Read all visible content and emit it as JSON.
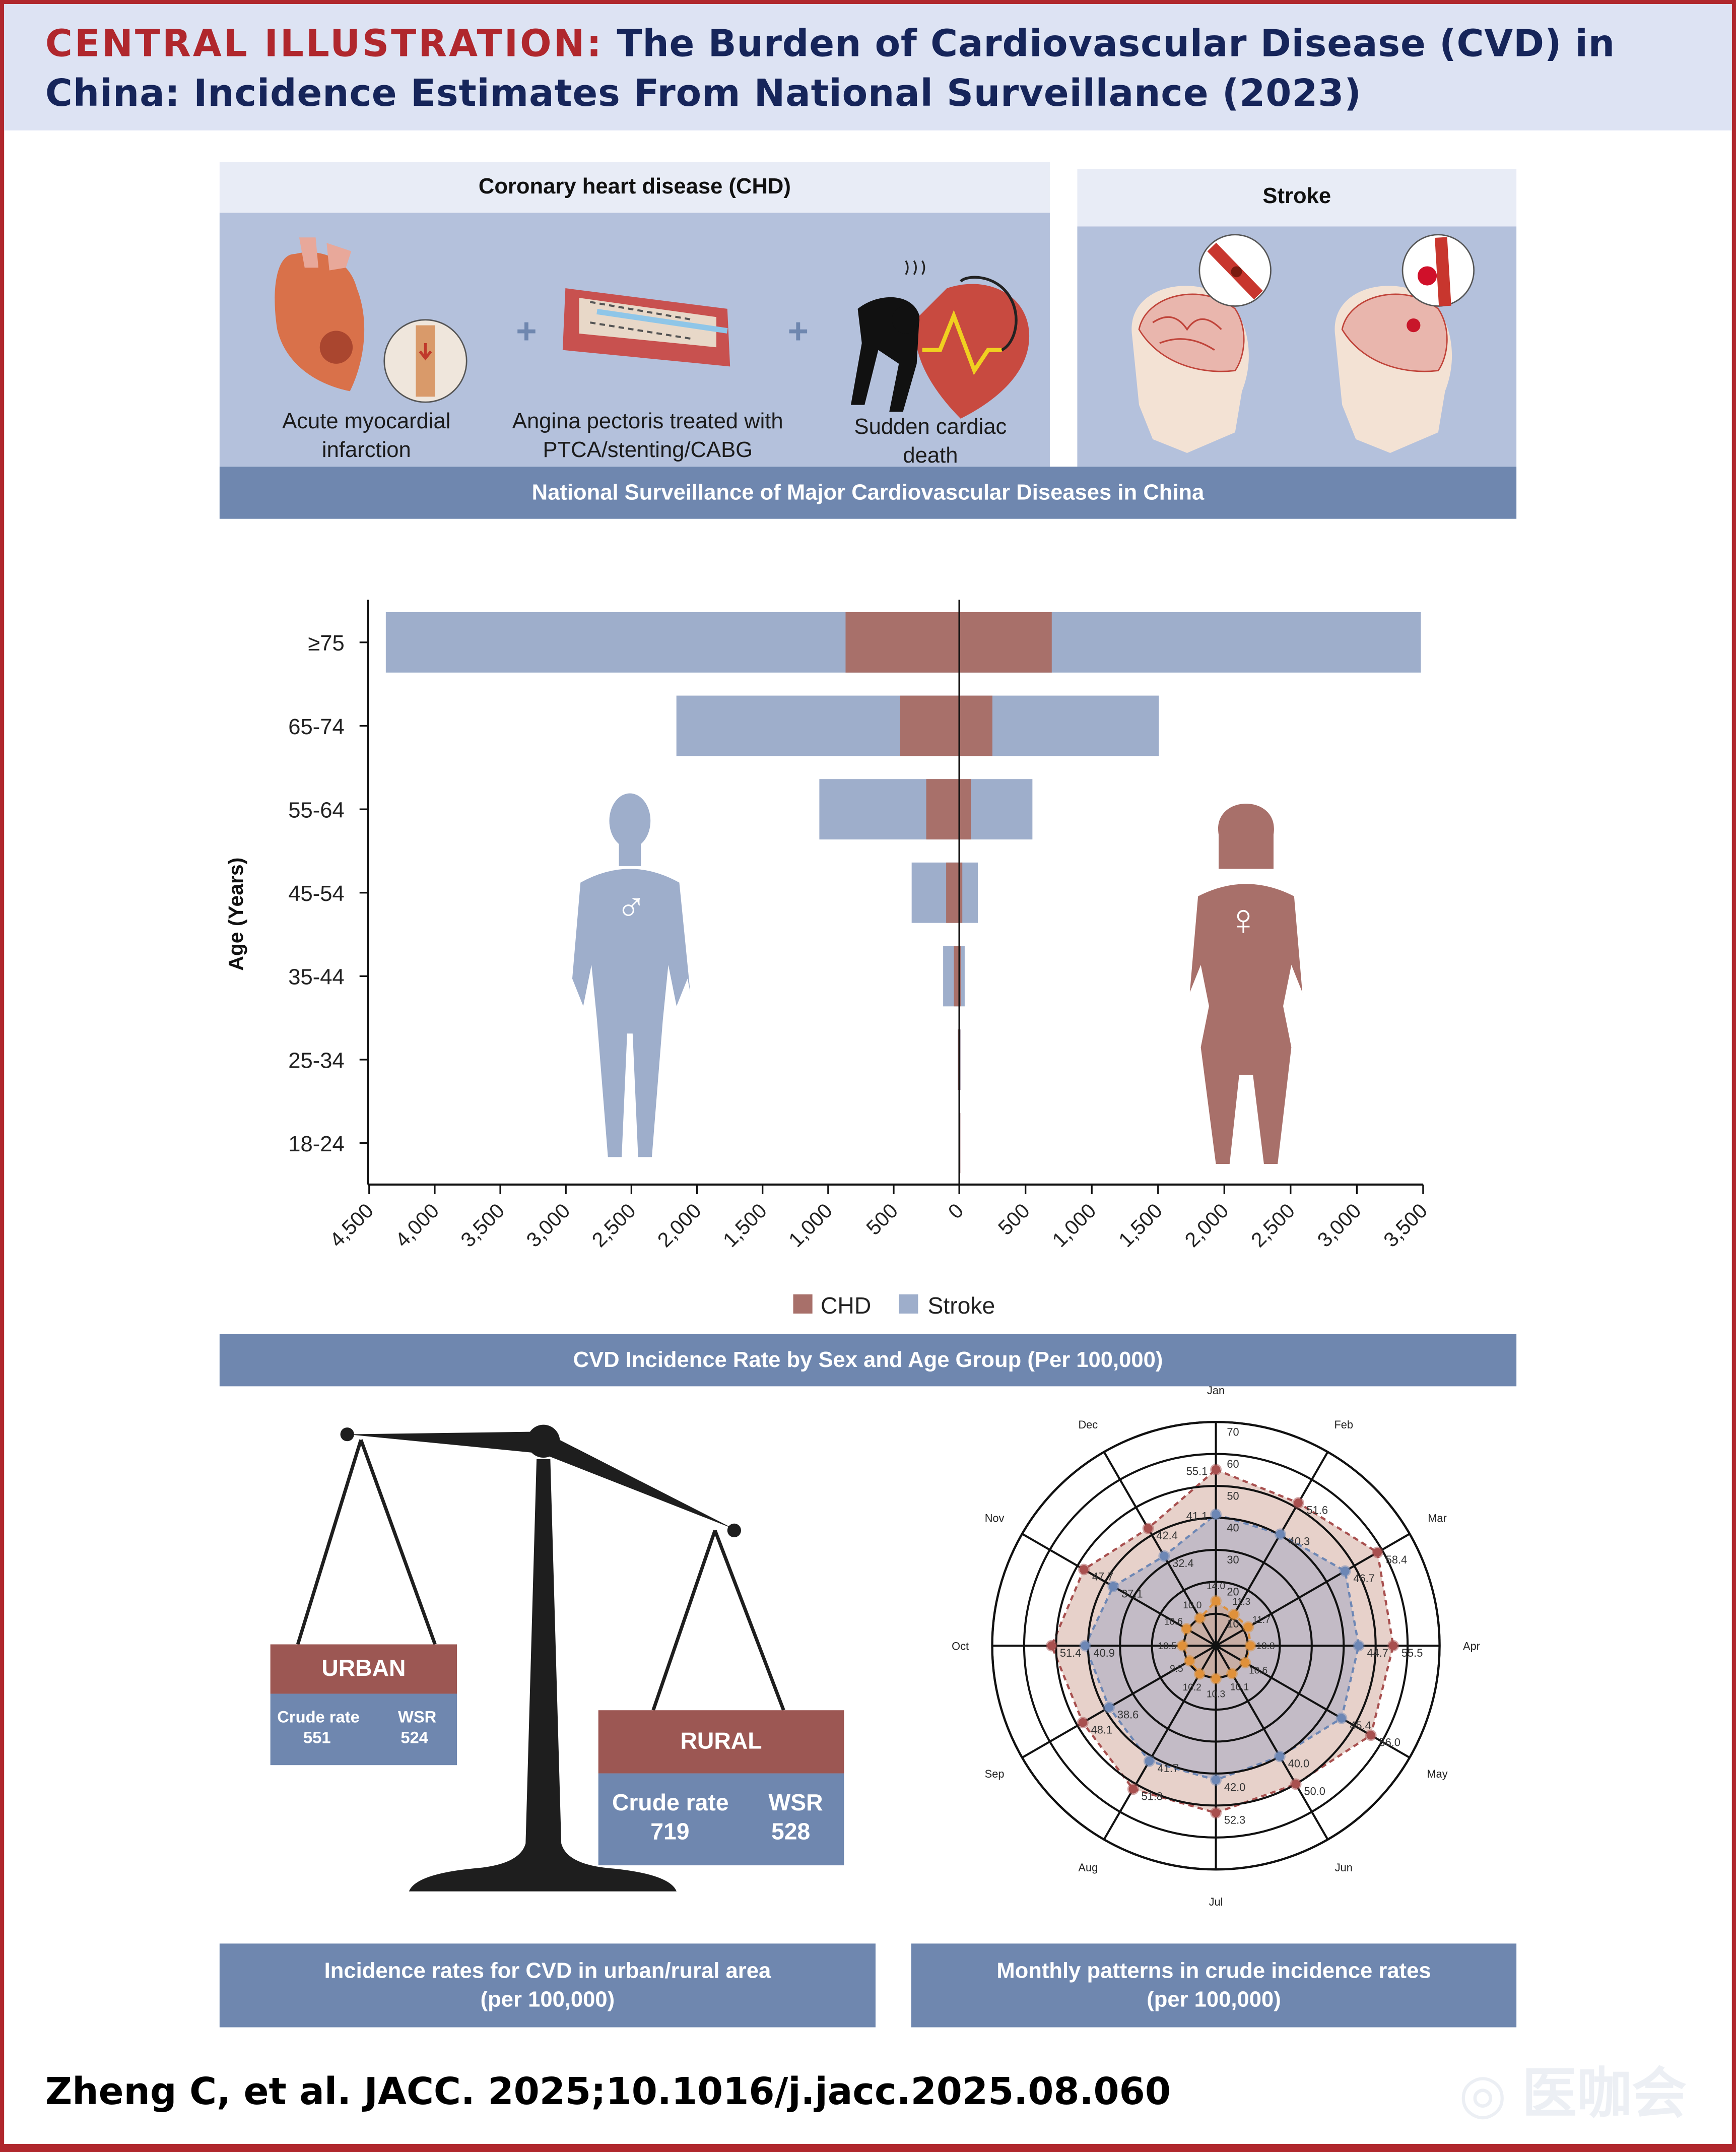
{
  "header": {
    "label": "CENTRAL ILLUSTRATION:",
    "title": "The Burden of Cardiovascular Disease (CVD) in China: Incidence Estimates From National Surveillance (2023)"
  },
  "chd_panel": {
    "title": "Coronary heart disease (CHD)",
    "items": [
      {
        "line1": "Acute myocardial",
        "line2": "infarction",
        "icon": "heart-infarction-illustration"
      },
      {
        "line1": "Angina pectoris treated with",
        "line2": "PTCA/stenting/CABG",
        "icon": "stent-artery-illustration"
      },
      {
        "line1": "Sudden cardiac",
        "line2": "death",
        "icon": "collapsing-person-heart-illustration"
      }
    ],
    "plus": "+"
  },
  "stroke_panel": {
    "title": "Stroke",
    "icons": [
      "ischemic-stroke-head-illustration",
      "hemorrhagic-stroke-head-illustration"
    ]
  },
  "banners": {
    "surveillance": "National Surveillance of Major Cardiovascular Diseases in China",
    "incidence_by_sex_age": "CVD Incidence Rate by Sex and Age Group (Per 100,000)",
    "urban_rural_line1": "Incidence rates for CVD in urban/rural area",
    "urban_rural_line2": "(per 100,000)",
    "monthly_line1": "Monthly patterns in crude incidence rates",
    "monthly_line2": "(per 100,000)"
  },
  "sex_symbols": {
    "male": "♂",
    "female": "♀"
  },
  "urban": {
    "title": "URBAN",
    "crude_label": "Crude rate",
    "crude_value": "551",
    "wsr_label": "WSR",
    "wsr_value": "524"
  },
  "rural": {
    "title": "RURAL",
    "crude_label": "Crude rate",
    "crude_value": "719",
    "wsr_label": "WSR",
    "wsr_value": "528"
  },
  "citation": "Zheng C, et al. JACC. 2025;10.1016/j.jacc.2025.08.060",
  "watermark": "医咖会",
  "colors": {
    "accent_red": "#b0272d",
    "navy": "#16255a",
    "chd": "#a8706a",
    "stroke": "#9eaecb",
    "banner": "#6f87af"
  },
  "chart_data": [
    {
      "type": "bar",
      "orientation": "horizontal-population-pyramid",
      "ylabel": "Age (Years)",
      "categories": [
        "≥75",
        "65-74",
        "55-64",
        "45-54",
        "35-44",
        "25-34",
        "18-24"
      ],
      "left_side": "male",
      "right_side": "female",
      "xlim_left": [
        0,
        4500
      ],
      "xlim_right": [
        0,
        3500
      ],
      "xticks_left": [
        "4,500",
        "4,000",
        "3,500",
        "3,000",
        "2,500",
        "2,000",
        "1,500",
        "1,000",
        "500",
        "0"
      ],
      "xticks_left_values": [
        4500,
        4000,
        3500,
        3000,
        2500,
        2000,
        1500,
        1000,
        500,
        0
      ],
      "xticks_right": [
        "500",
        "1,000",
        "1,500",
        "2,000",
        "2,500",
        "3,000",
        "3,500"
      ],
      "xticks_right_values": [
        500,
        1000,
        1500,
        2000,
        2500,
        3000,
        3500
      ],
      "legend": "bottom",
      "series": [
        {
          "name": "CHD",
          "color": "#a8706a",
          "male": [
            867,
            451,
            252,
            100,
            41,
            8,
            2
          ],
          "female": [
            698,
            250,
            87,
            23,
            12,
            5,
            1
          ]
        },
        {
          "name": "Stroke",
          "color": "#9eaecb",
          "male": [
            4373,
            2157,
            1067,
            363,
            123,
            12,
            3
          ],
          "female": [
            3483,
            1506,
            552,
            140,
            41,
            10,
            2
          ]
        }
      ]
    },
    {
      "type": "radar",
      "categories": [
        "Jan",
        "Feb",
        "Mar",
        "Apr",
        "May",
        "Jun",
        "Jul",
        "Aug",
        "Sep",
        "Oct",
        "Nov",
        "Dec"
      ],
      "rlim": [
        0,
        70
      ],
      "rticks": [
        "10",
        "20",
        "30",
        "40",
        "50",
        "60",
        "70"
      ],
      "series": [
        {
          "color": "#a8504f",
          "fill": "#e3c9c1",
          "values": [
            55.1,
            51.6,
            58.4,
            55.5,
            56.0,
            50.0,
            52.3,
            51.8,
            48.1,
            51.4,
            47.7,
            42.4
          ]
        },
        {
          "color": "#6d87b5",
          "fill": "#bcb7c6",
          "values": [
            41.1,
            40.3,
            46.7,
            44.7,
            45.4,
            40.0,
            42.0,
            41.7,
            38.6,
            40.9,
            37.1,
            32.4
          ]
        },
        {
          "color": "#e0913a",
          "fill": "#c9aa98",
          "values": [
            14.0,
            11.3,
            11.7,
            10.8,
            10.6,
            10.1,
            10.3,
            10.2,
            9.5,
            10.5,
            10.6,
            10.0
          ]
        }
      ]
    }
  ]
}
